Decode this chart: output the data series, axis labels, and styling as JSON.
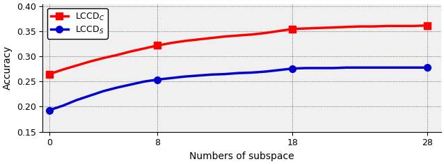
{
  "x": [
    0,
    1,
    2,
    3,
    4,
    5,
    6,
    7,
    8,
    9,
    10,
    11,
    12,
    13,
    14,
    15,
    16,
    17,
    18,
    19,
    20,
    21,
    22,
    23,
    24,
    25,
    26,
    27,
    28
  ],
  "lccd_c": [
    0.265,
    0.274,
    0.282,
    0.29,
    0.297,
    0.303,
    0.31,
    0.316,
    0.322,
    0.327,
    0.331,
    0.334,
    0.337,
    0.34,
    0.342,
    0.344,
    0.347,
    0.351,
    0.355,
    0.356,
    0.357,
    0.358,
    0.359,
    0.36,
    0.36,
    0.361,
    0.361,
    0.361,
    0.362
  ],
  "lccd_s": [
    0.193,
    0.202,
    0.213,
    0.222,
    0.231,
    0.238,
    0.244,
    0.25,
    0.254,
    0.257,
    0.26,
    0.262,
    0.264,
    0.265,
    0.267,
    0.268,
    0.27,
    0.273,
    0.276,
    0.277,
    0.277,
    0.277,
    0.278,
    0.278,
    0.278,
    0.278,
    0.278,
    0.278,
    0.278
  ],
  "line_color_c": "#ff0000",
  "line_color_s": "#0000cc",
  "xlabel": "Numbers of subspace",
  "ylabel": "Accuracy",
  "legend_c": "LCCD$_C$",
  "legend_s": "LCCD$_S$",
  "xlim": [
    -0.5,
    29
  ],
  "ylim": [
    0.15,
    0.405
  ],
  "xticks": [
    0,
    8,
    18,
    28
  ],
  "yticks": [
    0.15,
    0.2,
    0.25,
    0.3,
    0.35,
    0.4
  ],
  "linewidth": 2.5,
  "markersize": 7,
  "bg_color": "#f0f0f0"
}
